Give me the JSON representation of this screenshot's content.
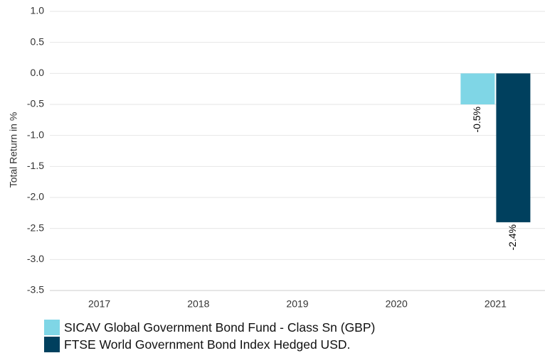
{
  "chart_data": {
    "type": "bar",
    "categories": [
      "2017",
      "2018",
      "2019",
      "2020",
      "2021"
    ],
    "series": [
      {
        "name": "SICAV Global Government Bond Fund - Class Sn (GBP)",
        "color": "#7fd6e6",
        "values": [
          null,
          null,
          null,
          null,
          -0.5
        ],
        "labels": [
          null,
          null,
          null,
          null,
          "-0.5%"
        ]
      },
      {
        "name": "FTSE World Government Bond Index Hedged USD.",
        "color": "#00405e",
        "values": [
          null,
          null,
          null,
          null,
          -2.4
        ],
        "labels": [
          null,
          null,
          null,
          null,
          "-2.4%"
        ]
      }
    ],
    "ylabel": "Total Return in %",
    "ylim": [
      -3.5,
      1.0
    ],
    "yticks": [
      "1.0",
      "0.5",
      "0.0",
      "-0.5",
      "-1.0",
      "-1.5",
      "-2.0",
      "-2.5",
      "-3.0",
      "-3.5"
    ],
    "grid": true,
    "legend_position": "bottom-left"
  }
}
